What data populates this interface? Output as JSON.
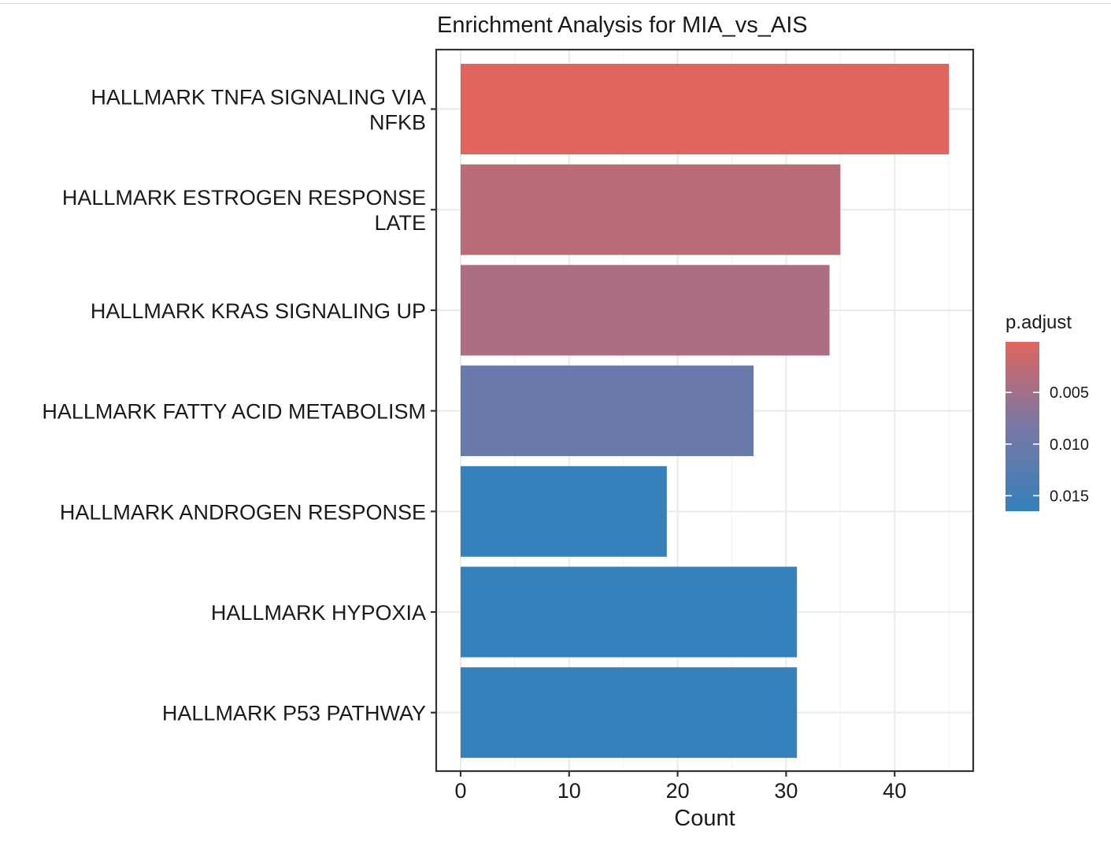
{
  "chart_data": {
    "type": "bar",
    "orientation": "horizontal",
    "title": "Enrichment Analysis for MIA_vs_AIS",
    "xlabel": "Count",
    "ylabel": "",
    "xlim": [
      0,
      47
    ],
    "x_ticks": [
      0,
      10,
      20,
      30,
      40
    ],
    "grid": true,
    "categories": [
      {
        "lines": [
          "HALLMARK TNFA SIGNALING VIA",
          "NFKB"
        ]
      },
      {
        "lines": [
          "HALLMARK ESTROGEN RESPONSE",
          "LATE"
        ]
      },
      {
        "lines": [
          "HALLMARK KRAS SIGNALING UP"
        ]
      },
      {
        "lines": [
          "HALLMARK FATTY ACID METABOLISM"
        ]
      },
      {
        "lines": [
          "HALLMARK ANDROGEN RESPONSE"
        ]
      },
      {
        "lines": [
          "HALLMARK HYPOXIA"
        ]
      },
      {
        "lines": [
          "HALLMARK P53 PATHWAY"
        ]
      }
    ],
    "values": [
      45,
      35,
      34,
      27,
      19,
      31,
      31
    ],
    "p_adjust": [
      0.0001,
      0.0031,
      0.0041,
      0.0102,
      0.0165,
      0.0165,
      0.0165
    ],
    "legend": {
      "title": "p.adjust",
      "position": "right",
      "range": [
        0.0001,
        0.0165
      ],
      "ticks": [
        0.005,
        0.01,
        0.015
      ],
      "tick_labels": [
        "0.005",
        "0.010",
        "0.015"
      ],
      "color_low_p": "#E0655F",
      "color_mid_p": "#7878A5",
      "color_high_p": "#3680BB"
    }
  }
}
